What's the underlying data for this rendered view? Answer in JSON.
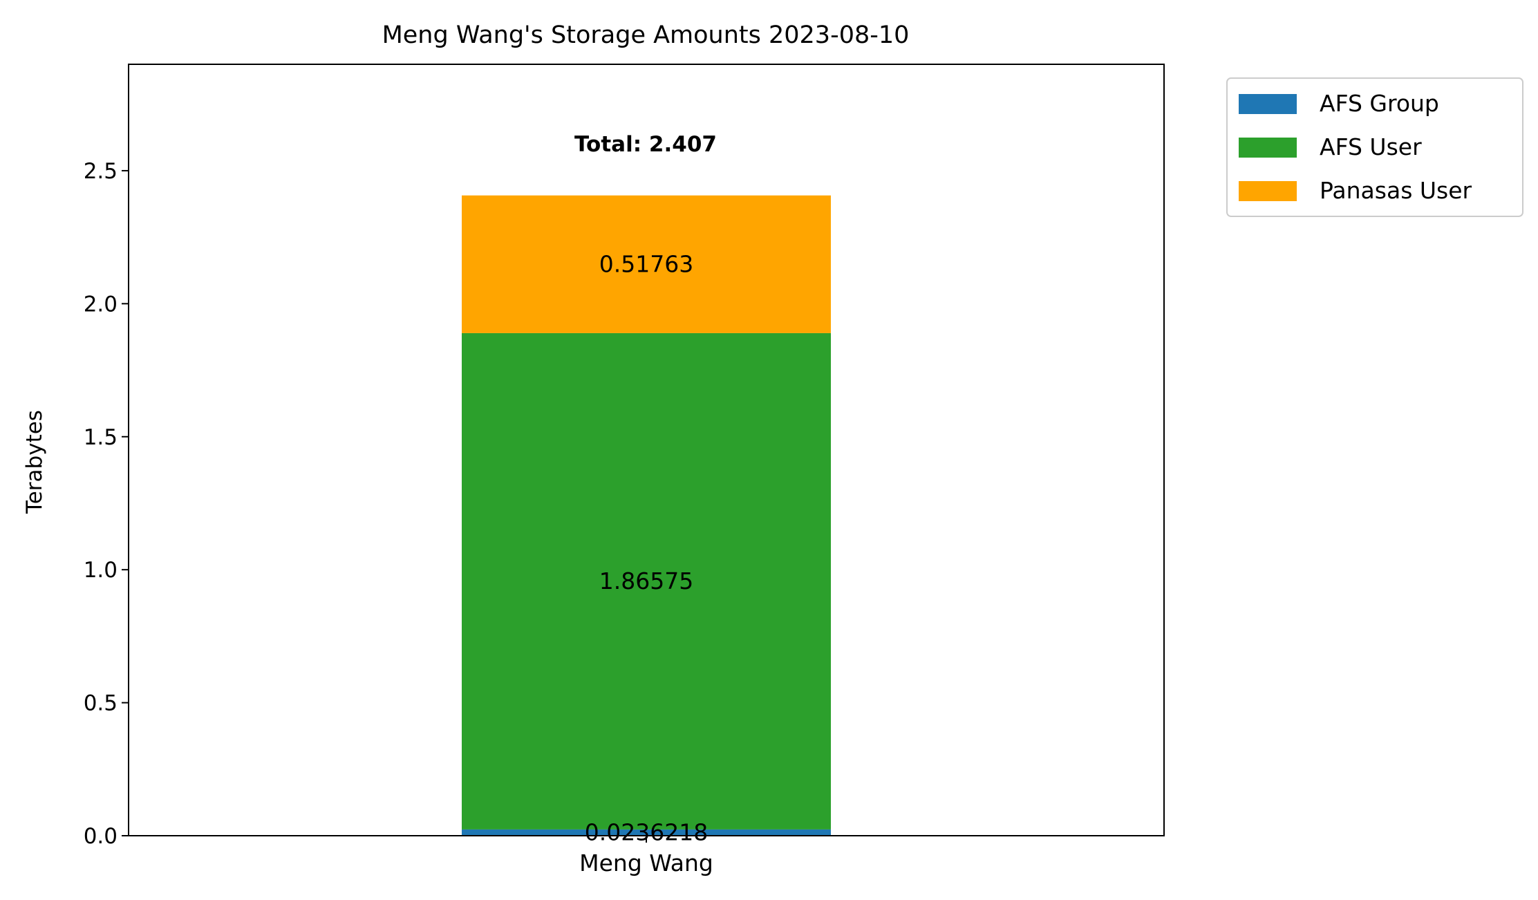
{
  "chart_data": {
    "type": "bar",
    "stacked": true,
    "title": "Meng Wang's Storage Amounts 2023-08-10",
    "xlabel": "",
    "ylabel": "Terabytes",
    "categories": [
      "Meng Wang"
    ],
    "ylim": [
      0,
      2.9
    ],
    "yticks": [
      "0.0",
      "0.5",
      "1.0",
      "1.5",
      "2.0",
      "2.5"
    ],
    "grid": false,
    "legend_position": "outside-top-right",
    "series": [
      {
        "name": "AFS Group",
        "values": [
          0.0236218
        ],
        "label": "0.0236218",
        "color": "#1f77b4"
      },
      {
        "name": "AFS User",
        "values": [
          1.86575
        ],
        "label": "1.86575",
        "color": "#2ca02c"
      },
      {
        "name": "Panasas User",
        "values": [
          0.51763
        ],
        "label": "0.51763",
        "color": "#ffa500"
      }
    ],
    "total_label": "Total: 2.407"
  }
}
